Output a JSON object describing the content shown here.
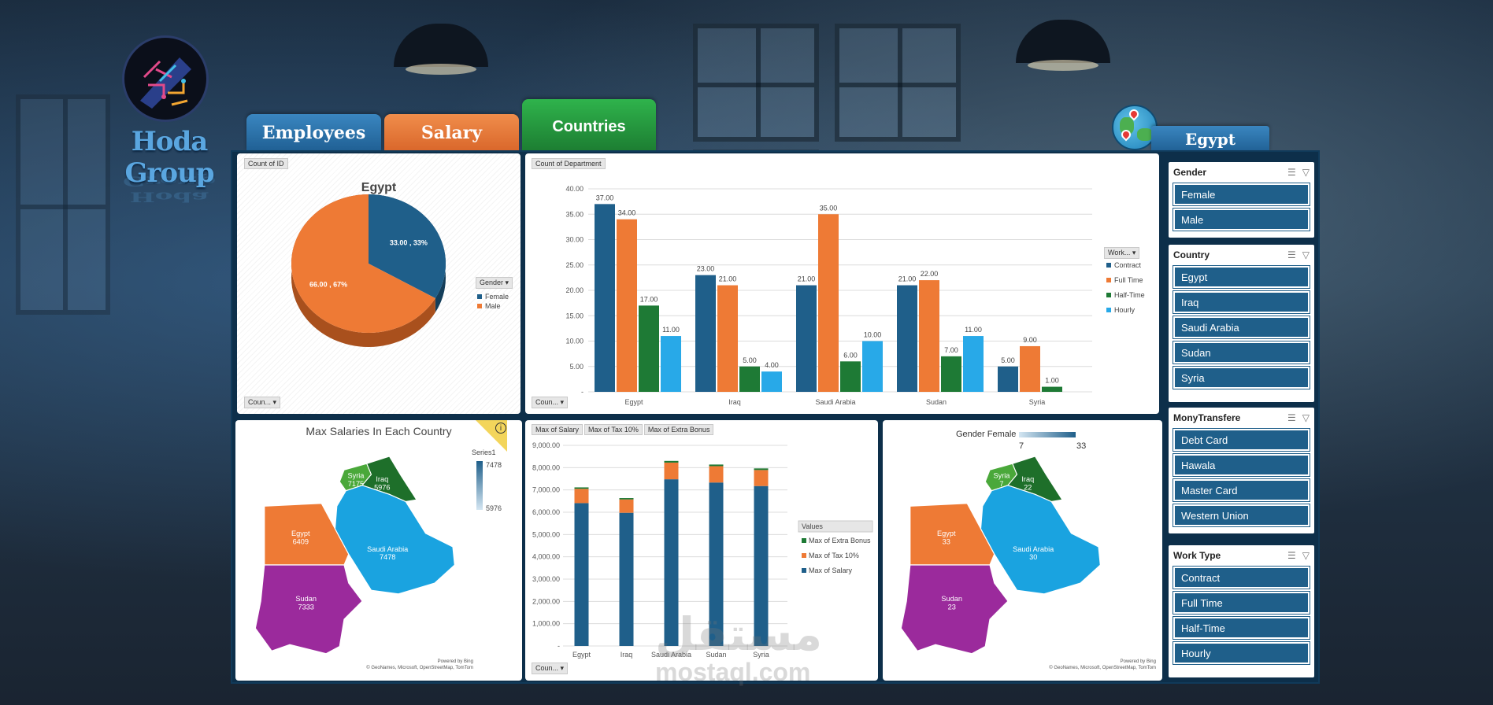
{
  "brand": {
    "name": "Hoda Group"
  },
  "tabs": {
    "employees": "Employees",
    "salary": "Salary",
    "countries": "Countries",
    "country_selected": "Egypt"
  },
  "pie_panel": {
    "field_label": "Count of ID",
    "dropdown": "Coun...",
    "legend_header": "Gender",
    "chart_data": {
      "type": "pie",
      "title": "Egypt",
      "categories": [
        "Female",
        "Male"
      ],
      "values": [
        33,
        66
      ],
      "labels": [
        "33.00 , 33%",
        "66.00 , 67%"
      ],
      "colors": [
        "#1f5f8a",
        "#ee7a35"
      ],
      "legend": "right"
    }
  },
  "bar_panel": {
    "field_label": "Count of Department",
    "dropdown": "Coun...",
    "legend_header": "Work...",
    "chart_data": {
      "type": "bar",
      "categories": [
        "Egypt",
        "Iraq",
        "Saudi Arabia",
        "Sudan",
        "Syria"
      ],
      "series": [
        {
          "name": "Contract",
          "color": "#1f5f8a",
          "values": [
            37,
            23,
            21,
            21,
            5
          ]
        },
        {
          "name": "Full Time",
          "color": "#ee7a35",
          "values": [
            34,
            21,
            35,
            22,
            9
          ]
        },
        {
          "name": "Half-Time",
          "color": "#1e7a35",
          "values": [
            17,
            5,
            6,
            7,
            1
          ]
        },
        {
          "name": "Hourly",
          "color": "#28a9e8",
          "values": [
            11,
            4,
            10,
            11,
            null
          ]
        }
      ],
      "ylim": [
        0,
        40
      ],
      "yticks": [
        "40.00",
        "35.00",
        "30.00",
        "25.00",
        "20.00",
        "15.00",
        "10.00",
        "5.00",
        "-"
      ],
      "legend": "right"
    }
  },
  "map_left": {
    "title": "Max Salaries In Each Country",
    "legend_series": "Series1",
    "legend_max": "7478",
    "legend_min": "5976",
    "regions": [
      {
        "name": "Syria",
        "value": "7175",
        "color": "#4aa83a"
      },
      {
        "name": "Iraq",
        "value": "5976",
        "color": "#1e6f2a"
      },
      {
        "name": "Egypt",
        "value": "6409",
        "color": "#ee7a35"
      },
      {
        "name": "Saudi Arabia",
        "value": "7478",
        "color": "#1aa3e0"
      },
      {
        "name": "Sudan",
        "value": "7333",
        "color": "#9b2a9c"
      }
    ],
    "powered": "Powered by Bing",
    "credits": "© GeoNames, Microsoft, OpenStreetMap, TomTom",
    "info_icon": "i"
  },
  "stack_panel": {
    "field_labels": [
      "Max of Salary",
      "Max of Tax 10%",
      "Max of Extra Bonus"
    ],
    "dropdown": "Coun...",
    "legend_header": "Values",
    "chart_data": {
      "type": "bar",
      "stacked": true,
      "categories": [
        "Egypt",
        "Iraq",
        "Saudi Arabia",
        "Sudan",
        "Syria"
      ],
      "series": [
        {
          "name": "Max of Salary",
          "color": "#1f5f8a",
          "values": [
            6409,
            5976,
            7478,
            7333,
            7175
          ]
        },
        {
          "name": "Max of Tax 10%",
          "color": "#ee7a35",
          "values": [
            641,
            598,
            748,
            733,
            718
          ]
        },
        {
          "name": "Max of Extra Bonus",
          "color": "#1e7a35",
          "values": [
            64,
            60,
            75,
            73,
            72
          ]
        }
      ],
      "ylim": [
        0,
        9000
      ],
      "yticks": [
        "9,000.00",
        "8,000.00",
        "7,000.00",
        "6,000.00",
        "5,000.00",
        "4,000.00",
        "3,000.00",
        "2,000.00",
        "1,000.00",
        "-"
      ],
      "legend": "right"
    }
  },
  "map_right": {
    "legend_title": "Gender Female",
    "legend_min": "7",
    "legend_max": "33",
    "regions": [
      {
        "name": "Syria",
        "value": "7",
        "color": "#4aa83a"
      },
      {
        "name": "Iraq",
        "value": "22",
        "color": "#1e6f2a"
      },
      {
        "name": "Egypt",
        "value": "33",
        "color": "#ee7a35"
      },
      {
        "name": "Saudi Arabia",
        "value": "30",
        "color": "#1aa3e0"
      },
      {
        "name": "Sudan",
        "value": "23",
        "color": "#9b2a9c"
      }
    ],
    "powered": "Powered by Bing",
    "credits": "© GeoNames, Microsoft, OpenStreetMap, TomTom"
  },
  "slicers": {
    "gender": {
      "title": "Gender",
      "items": [
        "Female",
        "Male"
      ]
    },
    "country": {
      "title": "Country",
      "items": [
        "Egypt",
        "Iraq",
        "Saudi Arabia",
        "Sudan",
        "Syria"
      ]
    },
    "money": {
      "title": "MonyTransfere",
      "items": [
        "Debt Card",
        "Hawala",
        "Master Card",
        "Western Union"
      ]
    },
    "worktype": {
      "title": "Work Type",
      "items": [
        "Contract",
        "Full Time",
        "Half-Time",
        "Hourly"
      ]
    }
  },
  "watermark": {
    "arabic": "مستقل",
    "latin": "mostaql.com"
  }
}
